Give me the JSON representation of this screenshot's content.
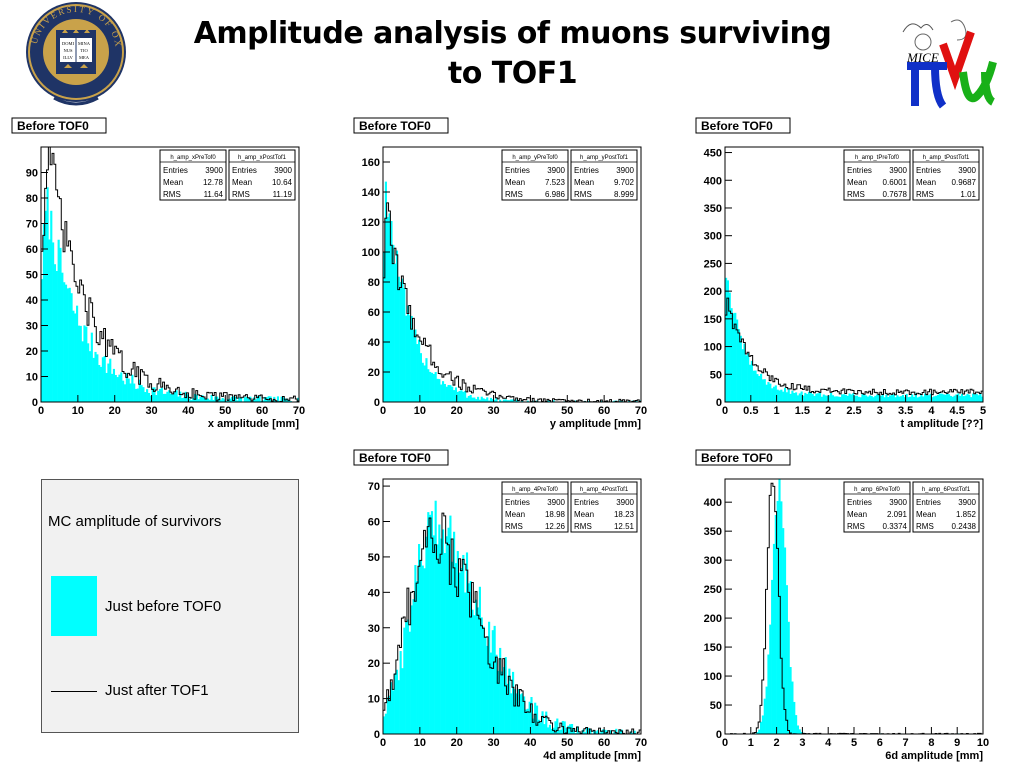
{
  "page": {
    "title_line1": "Amplitude analysis of muons surviving",
    "title_line2": "to TOF1",
    "logo_left_text": "UNIVERSITY OF OXFORD",
    "logo_left_book": [
      "DOMI",
      "NUS",
      "ILLV",
      "MINA",
      "TIO",
      "MEA"
    ],
    "logo_right_text": "MICE"
  },
  "colors": {
    "before": "#00ffff",
    "after": "#000000",
    "frame": "#000000"
  },
  "legend": {
    "title": "MC amplitude of survivors",
    "entry_before": "Just before TOF0",
    "entry_after": "Just after TOF1"
  },
  "chart_data": [
    {
      "id": "x",
      "type": "histogram",
      "tag": "Before TOF0",
      "xlabel": "x amplitude [mm]",
      "ylabel": "",
      "xlim": [
        0,
        70
      ],
      "ylim": [
        0,
        100
      ],
      "xticks": [
        0,
        10,
        20,
        30,
        40,
        50,
        60,
        70
      ],
      "yticks": [
        0,
        10,
        20,
        30,
        40,
        50,
        60,
        70,
        80,
        90
      ],
      "series": [
        {
          "name": "h_amp_xPreTof0",
          "style": "filled",
          "entries": "3900",
          "mean": "12.78",
          "rms": "11.64",
          "shape": {
            "kind": "exp",
            "peak": 78,
            "peak_x": 1.5,
            "decay": 9.5,
            "floor": 1
          }
        },
        {
          "name": "h_amp_xPostTof1",
          "style": "step",
          "entries": "3900",
          "mean": "10.64",
          "rms": "11.19",
          "shape": {
            "kind": "exp",
            "peak": 98,
            "peak_x": 2,
            "decay": 10.5,
            "floor": 1
          }
        }
      ]
    },
    {
      "id": "y",
      "type": "histogram",
      "tag": "Before TOF0",
      "xlabel": "y amplitude [mm]",
      "ylabel": "",
      "xlim": [
        0,
        70
      ],
      "ylim": [
        0,
        170
      ],
      "xticks": [
        0,
        10,
        20,
        30,
        40,
        50,
        60,
        70
      ],
      "yticks": [
        0,
        20,
        40,
        60,
        80,
        100,
        120,
        140,
        160
      ],
      "series": [
        {
          "name": "h_amp_yPreTof0",
          "style": "filled",
          "entries": "3900",
          "mean": "7.523",
          "rms": "6.986",
          "shape": {
            "kind": "exp",
            "peak": 145,
            "peak_x": 0.8,
            "decay": 6.5,
            "floor": 0
          }
        },
        {
          "name": "h_amp_yPostTof1",
          "style": "step",
          "entries": "3900",
          "mean": "9.702",
          "rms": "8.999",
          "shape": {
            "kind": "exp",
            "peak": 125,
            "peak_x": 1,
            "decay": 8.5,
            "floor": 0.5
          }
        }
      ]
    },
    {
      "id": "t",
      "type": "histogram",
      "tag": "Before TOF0",
      "xlabel": "t amplitude [??]",
      "ylabel": "",
      "xlim": [
        0,
        5
      ],
      "ylim": [
        0,
        460
      ],
      "xticks": [
        0,
        0.5,
        1,
        1.5,
        2,
        2.5,
        3,
        3.5,
        4,
        4.5,
        5
      ],
      "yticks": [
        0,
        50,
        100,
        150,
        200,
        250,
        300,
        350,
        400,
        450
      ],
      "series": [
        {
          "name": "h_amp_tPreTof0",
          "style": "filled",
          "entries": "3900",
          "mean": "0.6001",
          "rms": "0.7678",
          "shape": {
            "kind": "exp",
            "peak": 240,
            "peak_x": 0.02,
            "decay": 0.35,
            "floor": 12
          }
        },
        {
          "name": "h_amp_tPostTof1",
          "style": "step",
          "entries": "3900",
          "mean": "0.9687",
          "rms": "1.01",
          "shape": {
            "kind": "exp",
            "peak": 190,
            "peak_x": 0.03,
            "decay": 0.45,
            "floor": 18
          }
        }
      ]
    },
    {
      "id": "4d",
      "type": "histogram",
      "tag": "Before TOF0",
      "xlabel": "4d amplitude [mm]",
      "ylabel": "",
      "xlim": [
        0,
        70
      ],
      "ylim": [
        0,
        72
      ],
      "xticks": [
        0,
        10,
        20,
        30,
        40,
        50,
        60,
        70
      ],
      "yticks": [
        0,
        10,
        20,
        30,
        40,
        50,
        60,
        70
      ],
      "series": [
        {
          "name": "h_amp_4PreTof0",
          "style": "filled",
          "entries": "3900",
          "mean": "18.98",
          "rms": "12.26",
          "shape": {
            "kind": "gamma",
            "peak": 55,
            "peak_x": 13,
            "rise": 6,
            "decay": 13
          }
        },
        {
          "name": "h_amp_4PostTof1",
          "style": "step",
          "entries": "3900",
          "mean": "18.23",
          "rms": "12.51",
          "shape": {
            "kind": "gamma",
            "peak": 52,
            "peak_x": 12,
            "rise": 6,
            "decay": 13
          }
        }
      ]
    },
    {
      "id": "6d",
      "type": "histogram",
      "tag": "Before TOF0",
      "xlabel": "6d amplitude [mm]",
      "ylabel": "",
      "xlim": [
        0,
        10
      ],
      "ylim": [
        0,
        440
      ],
      "xticks": [
        0,
        1,
        2,
        3,
        4,
        5,
        6,
        7,
        8,
        9,
        10
      ],
      "yticks": [
        0,
        50,
        100,
        150,
        200,
        250,
        300,
        350,
        400
      ],
      "series": [
        {
          "name": "h_amp_6PreTof0",
          "style": "filled",
          "entries": "3900",
          "mean": "2.091",
          "rms": "0.3374",
          "shape": {
            "kind": "gauss",
            "peak": 420,
            "peak_x": 2.1,
            "sigma": 0.28
          }
        },
        {
          "name": "h_amp_6PostTof1",
          "style": "step",
          "entries": "3900",
          "mean": "1.852",
          "rms": "0.2438",
          "shape": {
            "kind": "gauss",
            "peak": 435,
            "peak_x": 1.85,
            "sigma": 0.22
          }
        }
      ]
    }
  ]
}
